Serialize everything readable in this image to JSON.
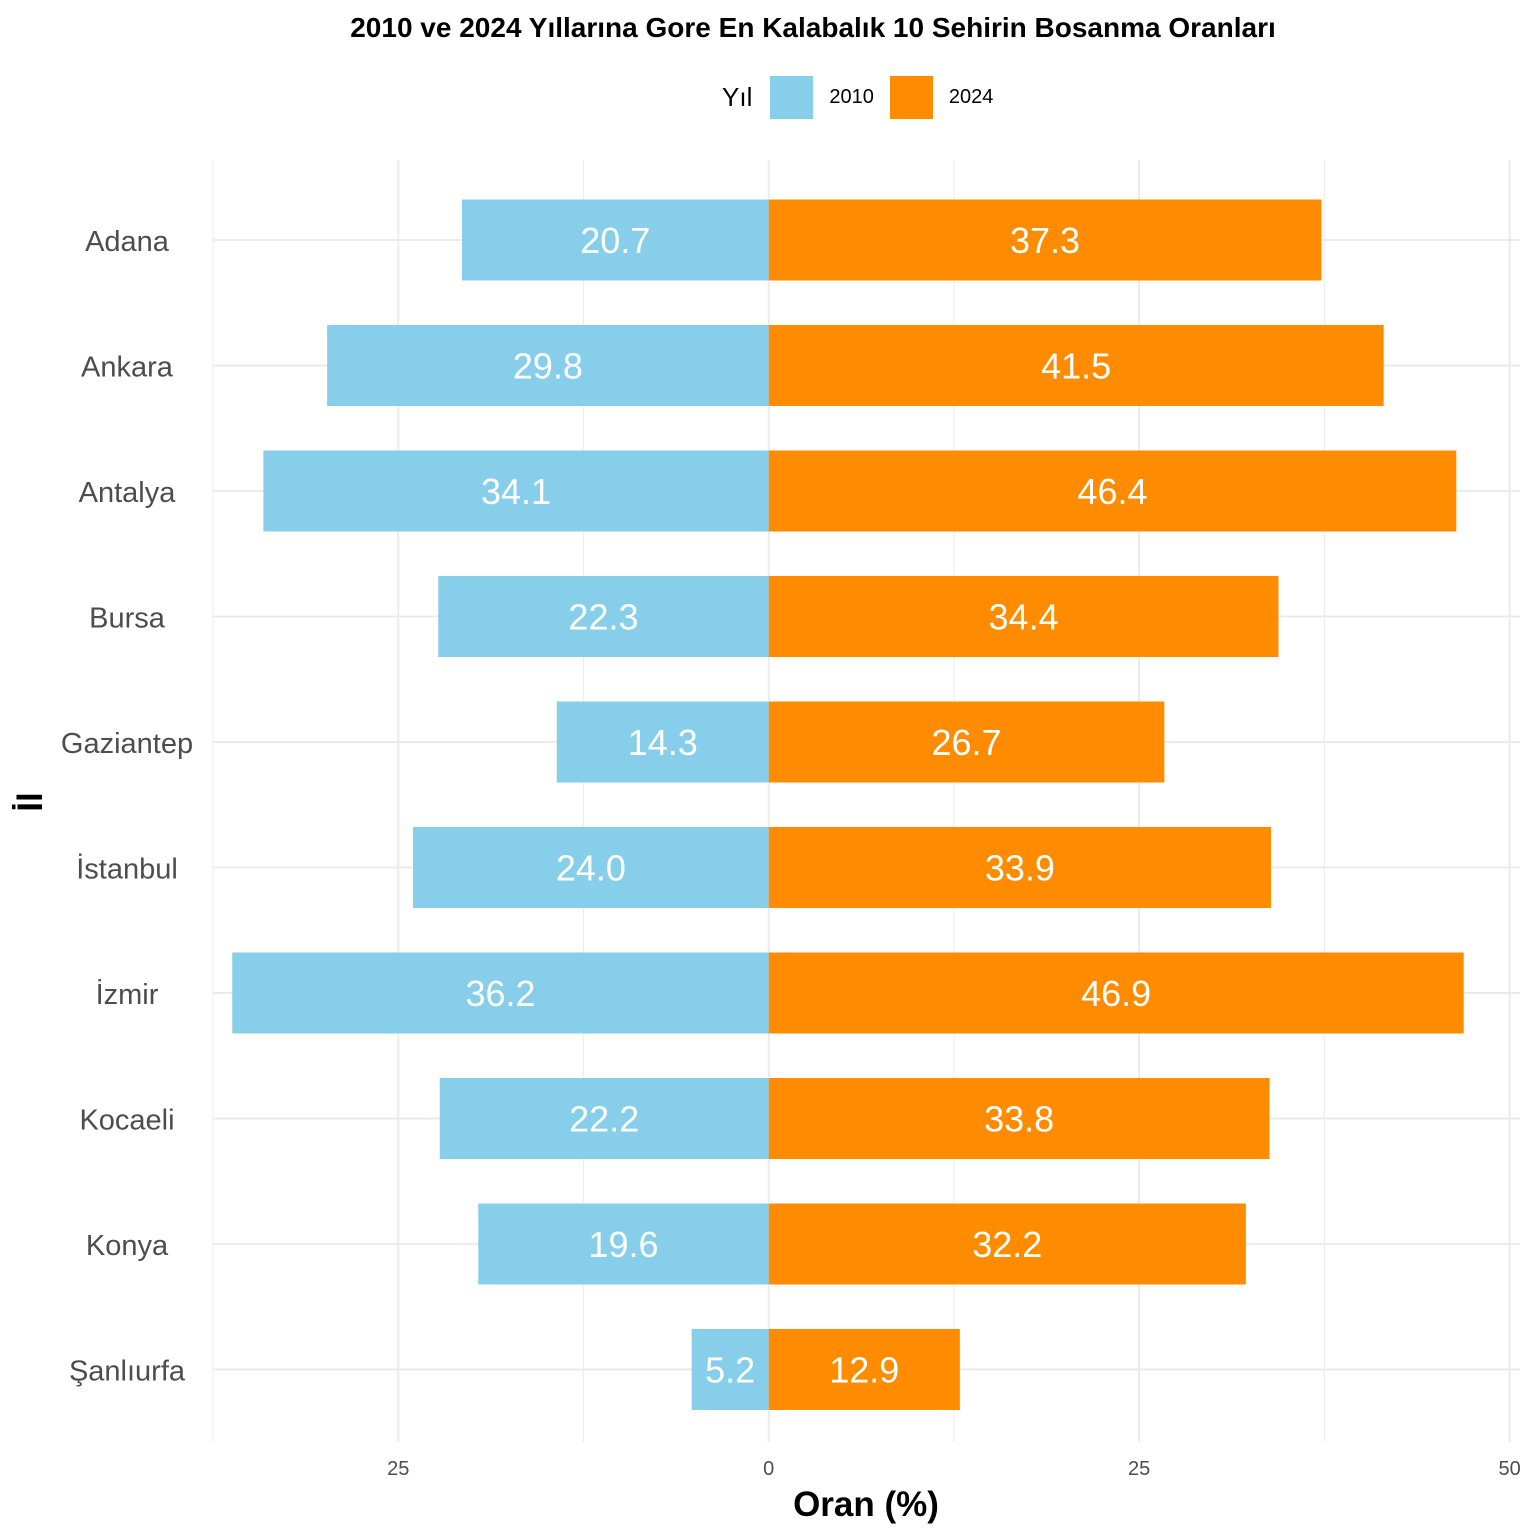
{
  "chart_data": {
    "type": "bar",
    "orientation": "horizontal-diverging",
    "title": "2010 ve 2024 Yıllarına Gore En Kalabalık 10 Sehirin Bosanma Oranları",
    "xlabel": "Oran (%)",
    "ylabel": "İl",
    "legend": {
      "title": "Yıl",
      "position": "top"
    },
    "categories": [
      "Adana",
      "Ankara",
      "Antalya",
      "Bursa",
      "Gaziantep",
      "İstanbul",
      "İzmir",
      "Kocaeli",
      "Konya",
      "Şanlıurfa"
    ],
    "series": [
      {
        "name": "2010",
        "color": "#87CEEB",
        "direction": "left",
        "values": [
          20.7,
          29.8,
          34.1,
          22.3,
          14.3,
          24.0,
          36.2,
          22.2,
          19.6,
          5.2
        ]
      },
      {
        "name": "2024",
        "color": "#FF8C00",
        "direction": "right",
        "values": [
          37.3,
          41.5,
          46.4,
          34.4,
          26.7,
          33.9,
          46.9,
          33.8,
          32.2,
          12.9
        ]
      }
    ],
    "xlim": [
      -37.5,
      50.7
    ],
    "x_ticks": [
      {
        "value": -25,
        "label": "25"
      },
      {
        "value": 0,
        "label": "0"
      },
      {
        "value": 25,
        "label": "25"
      },
      {
        "value": 50,
        "label": "50"
      }
    ],
    "grid": true
  }
}
